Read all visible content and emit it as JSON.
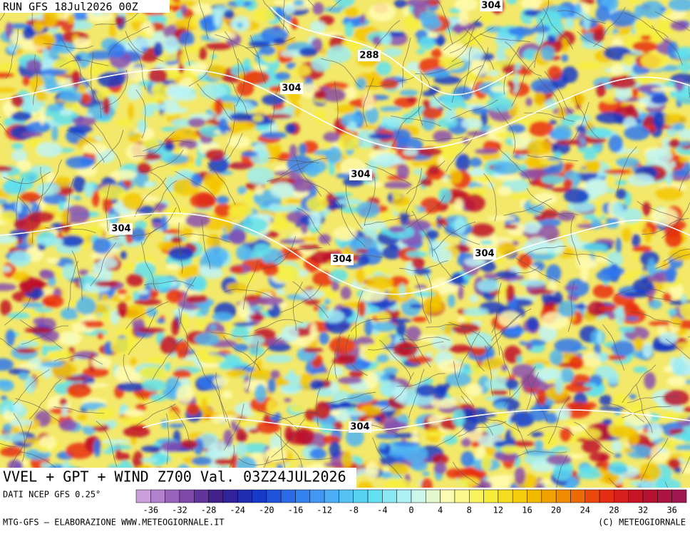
{
  "header": {
    "run": "RUN GFS 18Jul2026 00Z"
  },
  "map": {
    "title": "VVEL + GPT + WIND Z700 Val. 03Z24JUL2026",
    "contour_labels": [
      "304",
      "288",
      "304",
      "304",
      "304",
      "304",
      "304",
      "304"
    ]
  },
  "legend": {
    "source": "DATI NCEP GFS 0.25°",
    "ticks": [
      "-36",
      "-32",
      "-28",
      "-24",
      "-20",
      "-16",
      "-12",
      "-8",
      "-4",
      "0",
      "4",
      "8",
      "12",
      "16",
      "20",
      "24",
      "28",
      "32",
      "36"
    ]
  },
  "footer": {
    "left": "MTG-GFS — ELABORAZIONE WWW.METEOGIORNALE.IT",
    "right": "(C) METEOGIORNALE"
  }
}
